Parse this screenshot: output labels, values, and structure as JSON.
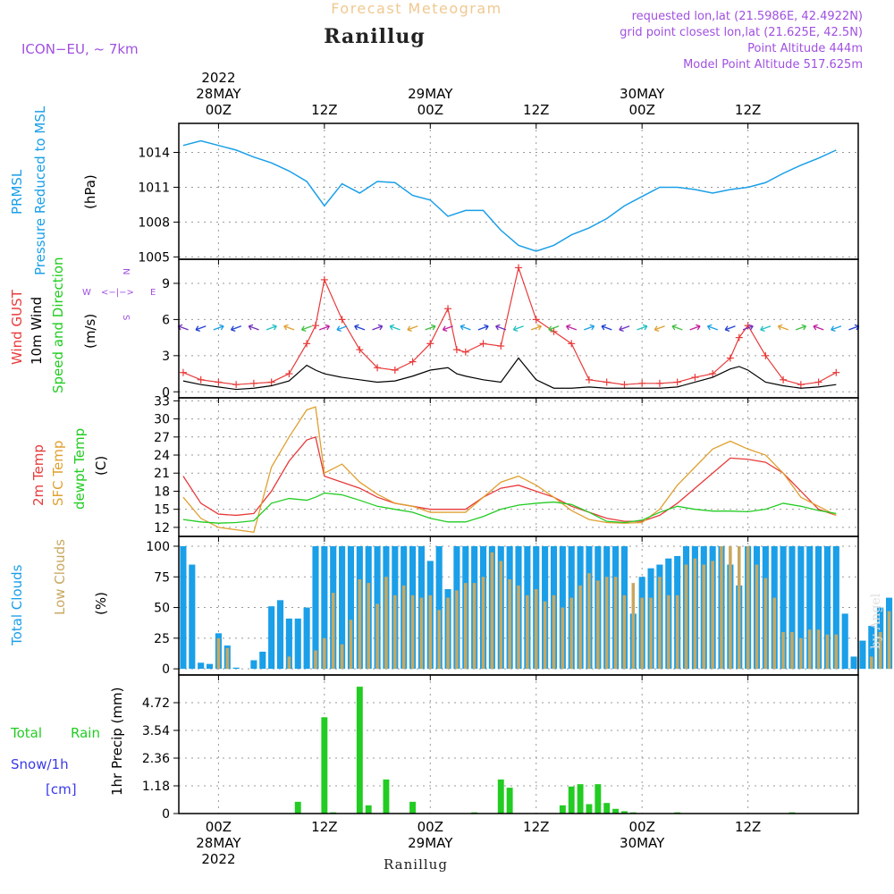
{
  "header": {
    "model": "ICON−EU, ~ 7km",
    "subtitle": "Forecast Meteogram",
    "station": "Ranillug",
    "requested": "requested lon,lat (21.5986E, 42.4922N)",
    "grid": "grid point closest lon,lat (21.625E, 42.5N)",
    "point_alt": "Point Altitude 444m",
    "model_alt": "Model Point Altitude 517.625m",
    "footer_station": "Ranillug",
    "credit": "by Angel"
  },
  "colors": {
    "pressure": "#1a9fe8",
    "gust": "#e83a3a",
    "wind": "#000000",
    "temp": "#e83a3a",
    "sfc": "#e0a030",
    "dew": "#22cc22",
    "total_cloud": "#1a9fe8",
    "low_cloud": "#c8a860",
    "rain": "#22cc22",
    "label_purple": "#a050e0",
    "snow": "#3a3ae8"
  },
  "time_axis": {
    "top": [
      {
        "label": "00Z",
        "extra": [
          "2022",
          "28MAY"
        ]
      },
      {
        "label": "12Z",
        "extra": []
      },
      {
        "label": "00Z",
        "extra": [
          "29MAY"
        ]
      },
      {
        "label": "12Z",
        "extra": []
      },
      {
        "label": "00Z",
        "extra": [
          "30MAY"
        ]
      },
      {
        "label": "12Z",
        "extra": []
      }
    ],
    "bottom": [
      {
        "label": "00Z",
        "extra": [
          "28MAY",
          "2022"
        ]
      },
      {
        "label": "12Z",
        "extra": []
      },
      {
        "label": "00Z",
        "extra": [
          "29MAY"
        ]
      },
      {
        "label": "12Z",
        "extra": []
      },
      {
        "label": "00Z",
        "extra": [
          "30MAY"
        ]
      },
      {
        "label": "12Z",
        "extra": []
      }
    ]
  },
  "panels": {
    "pressure": {
      "labels": [
        "PRMSL",
        "Pressure Reduced to MSL"
      ],
      "unit": "(hPa)"
    },
    "wind": {
      "labels": [
        "Wind GUST",
        "10m Wind",
        "Speed and Direction"
      ],
      "unit": "(m/s)",
      "compass": {
        "w": "W",
        "e": "E",
        "n": "N",
        "s": "S",
        "arrows": "<−|−>"
      }
    },
    "temp": {
      "labels": [
        "2m Temp",
        "SFC Temp",
        "dewpt Temp"
      ],
      "unit": "(C)"
    },
    "clouds": {
      "labels": [
        "Total Clouds",
        "Low Clouds"
      ],
      "unit": "(%)"
    },
    "precip": {
      "labels": [
        "Total",
        "Rain",
        "Snow/1h",
        "[cm]"
      ],
      "unit": "1hr Precip (mm)"
    }
  },
  "chart_data": [
    {
      "type": "line",
      "title": "PRMSL Pressure Reduced to MSL",
      "ylabel": "hPa",
      "hours": [
        -4,
        -2,
        0,
        2,
        4,
        6,
        8,
        10,
        12,
        14,
        16,
        18,
        20,
        22,
        24,
        26,
        28,
        30,
        32,
        34,
        36,
        38,
        40,
        42,
        44,
        46,
        48,
        50,
        52,
        54,
        56,
        58,
        60,
        62,
        64,
        66,
        68,
        70
      ],
      "values": [
        1014.6,
        1015.0,
        1014.6,
        1014.2,
        1013.6,
        1013.1,
        1012.4,
        1011.5,
        1009.4,
        1011.3,
        1010.5,
        1011.5,
        1011.4,
        1010.3,
        1009.9,
        1008.5,
        1009.0,
        1009.0,
        1007.3,
        1006.0,
        1005.5,
        1006.0,
        1006.9,
        1007.5,
        1008.3,
        1009.4,
        1010.2,
        1011.0,
        1011.0,
        1010.8,
        1010.5,
        1010.8,
        1011.0,
        1011.4,
        1012.2,
        1012.9,
        1013.5,
        1014.2
      ],
      "yticks": [
        1005,
        1008,
        1011,
        1014
      ],
      "ylim": [
        1004.8,
        1016.5
      ],
      "xlim": [
        -4.5,
        72.5
      ]
    },
    {
      "type": "line",
      "title": "Wind GUST / 10m Wind Speed and Direction",
      "ylabel": "m/s",
      "hours": [
        -4,
        -2,
        0,
        2,
        4,
        6,
        8,
        10,
        11,
        12,
        14,
        16,
        18,
        20,
        22,
        24,
        26,
        27,
        28,
        30,
        32,
        34,
        36,
        38,
        40,
        42,
        44,
        46,
        48,
        50,
        52,
        54,
        56,
        58,
        59,
        60,
        62,
        64,
        66,
        68,
        70
      ],
      "series": [
        {
          "name": "Wind GUST",
          "values": [
            1.6,
            1.0,
            0.8,
            0.6,
            0.7,
            0.8,
            1.5,
            4.0,
            5.5,
            9.3,
            6.0,
            3.5,
            2.0,
            1.8,
            2.5,
            4.0,
            6.9,
            3.5,
            3.3,
            4.0,
            3.8,
            10.3,
            6.0,
            5.0,
            4.0,
            1.0,
            0.8,
            0.6,
            0.7,
            0.7,
            0.8,
            1.2,
            1.5,
            2.8,
            4.5,
            5.5,
            3.0,
            1.0,
            0.6,
            0.8,
            1.6
          ]
        },
        {
          "name": "10m Wind",
          "values": [
            0.9,
            0.6,
            0.4,
            0.2,
            0.3,
            0.5,
            0.9,
            2.2,
            1.8,
            1.5,
            1.2,
            1.0,
            0.8,
            0.9,
            1.3,
            1.8,
            2.0,
            1.5,
            1.3,
            1.0,
            0.8,
            2.8,
            1.0,
            0.3,
            0.3,
            0.4,
            0.3,
            0.3,
            0.3,
            0.3,
            0.4,
            0.8,
            1.2,
            1.9,
            2.1,
            1.8,
            0.8,
            0.5,
            0.3,
            0.4,
            0.6
          ]
        }
      ],
      "yticks": [
        0,
        3,
        6,
        9
      ],
      "ylim": [
        -0.5,
        11
      ]
    },
    {
      "type": "line",
      "title": "2m Temp / SFC Temp / dewpt Temp",
      "ylabel": "C",
      "hours": [
        -4,
        -2,
        0,
        2,
        4,
        6,
        8,
        10,
        11,
        12,
        14,
        16,
        18,
        20,
        22,
        24,
        26,
        28,
        30,
        32,
        34,
        36,
        38,
        40,
        42,
        44,
        46,
        48,
        50,
        52,
        54,
        56,
        58,
        60,
        62,
        64,
        66,
        68,
        70
      ],
      "series": [
        {
          "name": "2m Temp",
          "values": [
            20.5,
            16,
            14.2,
            14,
            14.3,
            18,
            23,
            26.5,
            27,
            20.5,
            19.5,
            18.5,
            17,
            16,
            15.5,
            15,
            15,
            15,
            17,
            18.5,
            19,
            18,
            17,
            15.5,
            14.5,
            13.5,
            13,
            13,
            14,
            16,
            18.5,
            21,
            23.5,
            23.3,
            22.8,
            21,
            18,
            15,
            14
          ]
        },
        {
          "name": "SFC Temp",
          "values": [
            17,
            13.5,
            12,
            11.6,
            11.2,
            22,
            27,
            31.5,
            32,
            21,
            22.5,
            19.5,
            17.5,
            16,
            15.5,
            14.5,
            14.5,
            14.5,
            17,
            19.5,
            20.5,
            19,
            17,
            14.8,
            13.3,
            12.8,
            12.7,
            12.8,
            15,
            19,
            22,
            25,
            26.3,
            25,
            24,
            21,
            17,
            15.5,
            14
          ]
        },
        {
          "name": "dewpt Temp",
          "values": [
            13.3,
            12.9,
            12.7,
            12.8,
            13.1,
            16,
            16.8,
            16.5,
            17,
            17.7,
            17.4,
            16.5,
            15.5,
            15,
            14.5,
            13.5,
            12.9,
            12.9,
            13.8,
            15,
            15.7,
            16,
            16.2,
            15.8,
            14.5,
            13,
            12.8,
            13.2,
            14.5,
            15.5,
            15,
            14.7,
            14.7,
            14.6,
            15,
            16,
            15.5,
            14.8,
            14.3
          ]
        }
      ],
      "yticks": [
        12,
        15,
        18,
        21,
        24,
        27,
        30,
        33
      ],
      "ylim": [
        10.5,
        33.5
      ]
    },
    {
      "type": "bar",
      "title": "Total Clouds / Low Clouds",
      "ylabel": "%",
      "hours_start": -4,
      "series": [
        {
          "name": "Total Clouds",
          "values": [
            100,
            85,
            5,
            4,
            29,
            19,
            1,
            0,
            7,
            14,
            51,
            56,
            41,
            41,
            50,
            100,
            100,
            100,
            100,
            100,
            100,
            100,
            100,
            100,
            100,
            100,
            100,
            100,
            88,
            100,
            65,
            100,
            100,
            100,
            100,
            100,
            100,
            100,
            100,
            100,
            100,
            100,
            100,
            100,
            100,
            100,
            100,
            100,
            100,
            100,
            100,
            45,
            75,
            82,
            85,
            90,
            92,
            100,
            100,
            100,
            100,
            100,
            85,
            68,
            100,
            100,
            100,
            100,
            100,
            100,
            100,
            100,
            100,
            100,
            100,
            45,
            10,
            23,
            35,
            50,
            58,
            65,
            79
          ]
        },
        {
          "name": "Low Clouds",
          "values": [
            0,
            0,
            0,
            0,
            25,
            17,
            0,
            0,
            0,
            0,
            0,
            0,
            10,
            0,
            0,
            15,
            25,
            62,
            20,
            40,
            73,
            70,
            53,
            75,
            60,
            68,
            60,
            58,
            60,
            48,
            58,
            64,
            70,
            70,
            75,
            95,
            88,
            73,
            68,
            60,
            65,
            55,
            60,
            50,
            58,
            68,
            78,
            72,
            75,
            75,
            60,
            70,
            58,
            58,
            75,
            60,
            60,
            85,
            90,
            85,
            88,
            100,
            100,
            100,
            100,
            85,
            74,
            58,
            30,
            30,
            25,
            32,
            32,
            28,
            28,
            0,
            0,
            0,
            10,
            30,
            47,
            55,
            75
          ]
        }
      ],
      "yticks": [
        0,
        25,
        50,
        75,
        100
      ],
      "ylim": [
        -5,
        108
      ]
    },
    {
      "type": "bar",
      "title": "1hr Precip (mm)",
      "ylabel": "1hr Precip (mm)",
      "hours": [
        9,
        10,
        12,
        13,
        16,
        17,
        18,
        19,
        20,
        21,
        22,
        29,
        30,
        31,
        32,
        33,
        39,
        40,
        41,
        42,
        43,
        44,
        45,
        46,
        47,
        52,
        65
      ],
      "values": [
        0.5,
        0,
        4.1,
        0.05,
        5.4,
        0.35,
        0,
        1.45,
        0,
        0,
        0.5,
        0.05,
        0,
        0,
        1.45,
        1.1,
        0.35,
        1.15,
        1.25,
        0.4,
        1.25,
        0.45,
        0.2,
        0.1,
        0.05,
        0.05,
        0.05
      ],
      "yticks": [
        0,
        1.18,
        2.36,
        3.54,
        4.72
      ],
      "yticklabels": [
        "0",
        "1.18",
        "2.36",
        "3.54",
        "4.72"
      ],
      "ylim": [
        0,
        5.9
      ]
    }
  ]
}
